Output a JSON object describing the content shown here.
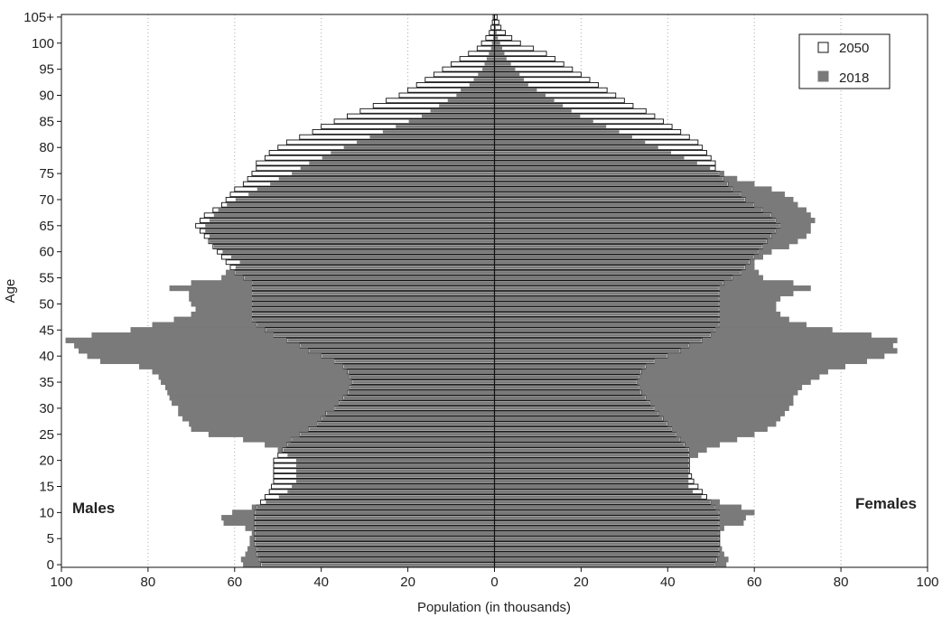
{
  "chart_data": {
    "type": "bar",
    "orientation": "horizontal",
    "xlabel": "Population (in thousands)",
    "ylabel": "Age",
    "xlim": [
      -100,
      100
    ],
    "xticks": [
      -100,
      -80,
      -60,
      -40,
      -20,
      0,
      20,
      40,
      60,
      80,
      100
    ],
    "xtick_labels": [
      "100",
      "80",
      "60",
      "40",
      "20",
      "0",
      "20",
      "40",
      "60",
      "80",
      "100"
    ],
    "ylim": [
      0,
      105
    ],
    "ytick_labels": [
      "0",
      "5",
      "10",
      "15",
      "20",
      "25",
      "30",
      "35",
      "40",
      "45",
      "50",
      "55",
      "60",
      "65",
      "70",
      "75",
      "80",
      "85",
      "90",
      "95",
      "100",
      "105+"
    ],
    "left_label": "Males",
    "right_label": "Females",
    "grid": "vertical dotted",
    "legend_position": "top-right",
    "ages": [
      0,
      1,
      2,
      3,
      4,
      5,
      6,
      7,
      8,
      9,
      10,
      11,
      12,
      13,
      14,
      15,
      16,
      17,
      18,
      19,
      20,
      21,
      22,
      23,
      24,
      25,
      26,
      27,
      28,
      29,
      30,
      31,
      32,
      33,
      34,
      35,
      36,
      37,
      38,
      39,
      40,
      41,
      42,
      43,
      44,
      45,
      46,
      47,
      48,
      49,
      50,
      51,
      52,
      53,
      54,
      55,
      56,
      57,
      58,
      59,
      60,
      61,
      62,
      63,
      64,
      65,
      66,
      67,
      68,
      69,
      70,
      71,
      72,
      73,
      74,
      75,
      76,
      77,
      78,
      79,
      80,
      81,
      82,
      83,
      84,
      85,
      86,
      87,
      88,
      89,
      90,
      91,
      92,
      93,
      94,
      95,
      96,
      97,
      98,
      99,
      100,
      101,
      102,
      103,
      104,
      105
    ],
    "series": [
      {
        "name": "2050",
        "fill": "#ffffff",
        "stroke": "#111111",
        "males": [
          54,
          54.5,
          55,
          55,
          55.5,
          55.5,
          55.5,
          55.5,
          55.5,
          55.5,
          55.5,
          55,
          54,
          53,
          52,
          51.5,
          51,
          51,
          51,
          51,
          51,
          50,
          49,
          48,
          47,
          45,
          43,
          41,
          40,
          39,
          37,
          36,
          35,
          34,
          33.5,
          33,
          33.5,
          34,
          35,
          37,
          40,
          43,
          45,
          48,
          51,
          53,
          55,
          56,
          56,
          56,
          56,
          56,
          56,
          56,
          56,
          58,
          60,
          61,
          62,
          63,
          64,
          65,
          66,
          67,
          68,
          69,
          68,
          67,
          65,
          63,
          62,
          61,
          60,
          58,
          57,
          56,
          55,
          55,
          53,
          52,
          50,
          48,
          45,
          42,
          40,
          37,
          34,
          31,
          28,
          25,
          22,
          20,
          18,
          16,
          14,
          12,
          10,
          8,
          6,
          4,
          3,
          2,
          1.2,
          0.8,
          0.5,
          0.3
        ],
        "females": [
          51,
          51.5,
          52,
          52,
          52,
          52,
          52,
          52,
          52,
          52,
          52,
          51,
          50,
          49,
          48,
          47,
          46,
          45.5,
          45,
          45,
          45,
          45,
          45,
          44,
          43,
          42,
          41,
          40,
          39,
          38,
          37,
          36,
          35,
          34,
          33.5,
          33,
          33.5,
          34,
          35,
          37,
          40,
          43,
          45,
          48,
          50,
          51,
          52,
          52,
          52,
          52,
          52,
          52,
          52,
          52,
          53,
          55,
          57,
          58,
          59,
          60,
          61,
          62,
          63,
          64,
          65,
          66,
          65,
          64,
          62,
          60,
          58,
          57,
          55,
          54,
          53,
          52,
          51,
          51,
          50,
          49,
          48,
          47,
          45,
          43,
          41,
          39,
          37,
          35,
          32,
          30,
          28,
          26,
          24,
          22,
          20,
          18,
          16,
          14,
          12,
          9,
          6,
          4,
          2.5,
          1.5,
          1,
          0.6
        ]
      },
      {
        "name": "2018",
        "fill": "#7a7a7a",
        "stroke": "#7a7a7a",
        "males": [
          58,
          58.5,
          57.5,
          57,
          56.5,
          56.5,
          56,
          57.5,
          62.5,
          63,
          60.5,
          56,
          53,
          50,
          48,
          47,
          46,
          46,
          46,
          46,
          46,
          48,
          50,
          53,
          58,
          66,
          70,
          70.5,
          72,
          73,
          73,
          74.5,
          75,
          75.5,
          76,
          77,
          77.5,
          79,
          82,
          91,
          94,
          96,
          97,
          99,
          93,
          84,
          79,
          74,
          70,
          69,
          70,
          70.5,
          70.5,
          75,
          70,
          63,
          62,
          60,
          59,
          61,
          63,
          65,
          66,
          66,
          67,
          67,
          66,
          65,
          64,
          62,
          60,
          57,
          55,
          52,
          50,
          47,
          45,
          43,
          40,
          38,
          35,
          32,
          29,
          26,
          23,
          20,
          17,
          15,
          13,
          11,
          9,
          8,
          6,
          5,
          4,
          3,
          2.5,
          2,
          1.5,
          1,
          0.8,
          0.5,
          0.4,
          0.3,
          0.2,
          0.3
        ],
        "females": [
          53.5,
          54,
          53,
          52.5,
          52,
          52,
          52,
          53,
          57.5,
          58,
          60,
          57,
          52,
          48,
          46,
          45,
          45,
          45,
          45,
          45,
          45,
          47,
          49,
          52,
          56,
          60,
          63,
          65,
          66,
          67,
          68,
          69,
          69,
          70,
          71,
          73,
          75,
          77,
          81,
          86,
          90,
          93,
          92,
          93,
          87,
          78,
          72,
          68,
          66,
          65,
          65,
          66,
          69,
          73,
          69,
          62,
          61,
          60,
          60,
          62,
          64,
          68,
          70,
          72,
          73,
          73,
          74,
          73,
          72,
          70,
          69,
          67,
          64,
          60,
          56,
          53,
          50,
          47,
          44,
          41,
          38,
          35,
          32,
          29,
          26,
          23,
          20,
          18,
          16,
          14,
          12,
          10,
          8,
          7,
          6,
          5,
          4,
          3,
          2.5,
          2,
          1.5,
          1,
          0.7,
          0.5,
          0.3,
          0.3
        ]
      }
    ]
  }
}
